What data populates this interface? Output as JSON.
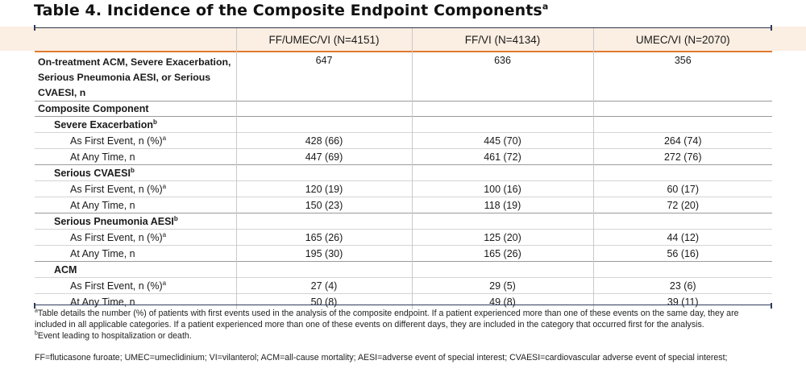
{
  "title": "Table 4. Incidence of the Composite Endpoint Components",
  "title_sup": "a",
  "columns": [
    "",
    "FF/UMEC/VI (N=4151)",
    "FF/VI (N=4134)",
    "UMEC/VI (N=2070)"
  ],
  "main_row": {
    "label": "On-treatment ACM, Severe Exacerbation, Serious Pneumonia AESI, or Serious CVAESI, n",
    "values": [
      "647",
      "636",
      "356"
    ]
  },
  "composite_label": "Composite Component",
  "groups": [
    {
      "name": "Severe Exacerbation",
      "sup": "b",
      "rows": [
        {
          "label": "As First Event, n (%)",
          "sup": "a",
          "values": [
            "428 (66)",
            "445 (70)",
            "264 (74)"
          ]
        },
        {
          "label": "At Any Time, n",
          "sup": "",
          "values": [
            "447 (69)",
            "461 (72)",
            "272 (76)"
          ]
        }
      ]
    },
    {
      "name": "Serious CVAESI",
      "sup": "b",
      "rows": [
        {
          "label": "As First Event, n (%)",
          "sup": "a",
          "values": [
            "120 (19)",
            "100 (16)",
            "60 (17)"
          ]
        },
        {
          "label": "At Any Time, n",
          "sup": "",
          "values": [
            "150 (23)",
            "118 (19)",
            "72 (20)"
          ]
        }
      ]
    },
    {
      "name": "Serious Pneumonia AESI",
      "sup": "b",
      "rows": [
        {
          "label": "As First Event, n (%)",
          "sup": "a",
          "values": [
            "165 (26)",
            "125 (20)",
            "44 (12)"
          ]
        },
        {
          "label": "At Any Time, n",
          "sup": "",
          "values": [
            "195 (30)",
            "165 (26)",
            "56 (16)"
          ]
        }
      ]
    },
    {
      "name": "ACM",
      "sup": "",
      "rows": [
        {
          "label": "As First Event, n (%)",
          "sup": "a",
          "values": [
            "27 (4)",
            "29 (5)",
            "23 (6)"
          ]
        },
        {
          "label": "At Any Time, n",
          "sup": "",
          "values": [
            "50 (8)",
            "49 (8)",
            "39 (11)"
          ]
        }
      ]
    }
  ],
  "footnotes": {
    "a_sup": "a",
    "a": "Table details the number (%) of patients with first events used in the analysis of the composite endpoint. If a patient experienced more than one of these events on the same day, they are included in all applicable categories. If a patient experienced more than one of these events on different days, they are included in the category that occurred first for the analysis.",
    "b_sup": "b",
    "b": "Event leading to hospitalization or death.",
    "abbrev": "FF=fluticasone furoate; UMEC=umeclidinium; VI=vilanterol; ACM=all-cause mortality; AESI=adverse event of special interest; CVAESI=cardiovascular adverse event of special interest;"
  }
}
